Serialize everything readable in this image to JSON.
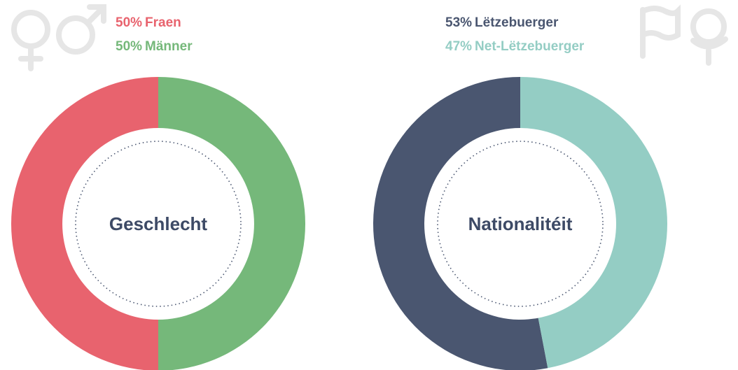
{
  "chart_data": [
    {
      "type": "donut",
      "title": "Geschlecht",
      "categories": [
        "Fraen",
        "Männer"
      ],
      "values": [
        50,
        50
      ],
      "value_labels": [
        "50%",
        "50%"
      ],
      "colors": [
        "#e8636e",
        "#75b87a"
      ]
    },
    {
      "type": "donut",
      "title": "Nationalitéit",
      "categories": [
        "Lëtzebuerger",
        "Net-Lëtzebuerger"
      ],
      "values": [
        53,
        47
      ],
      "value_labels": [
        "53%",
        "47%"
      ],
      "colors": [
        "#4a5670",
        "#94cdc4"
      ]
    }
  ]
}
